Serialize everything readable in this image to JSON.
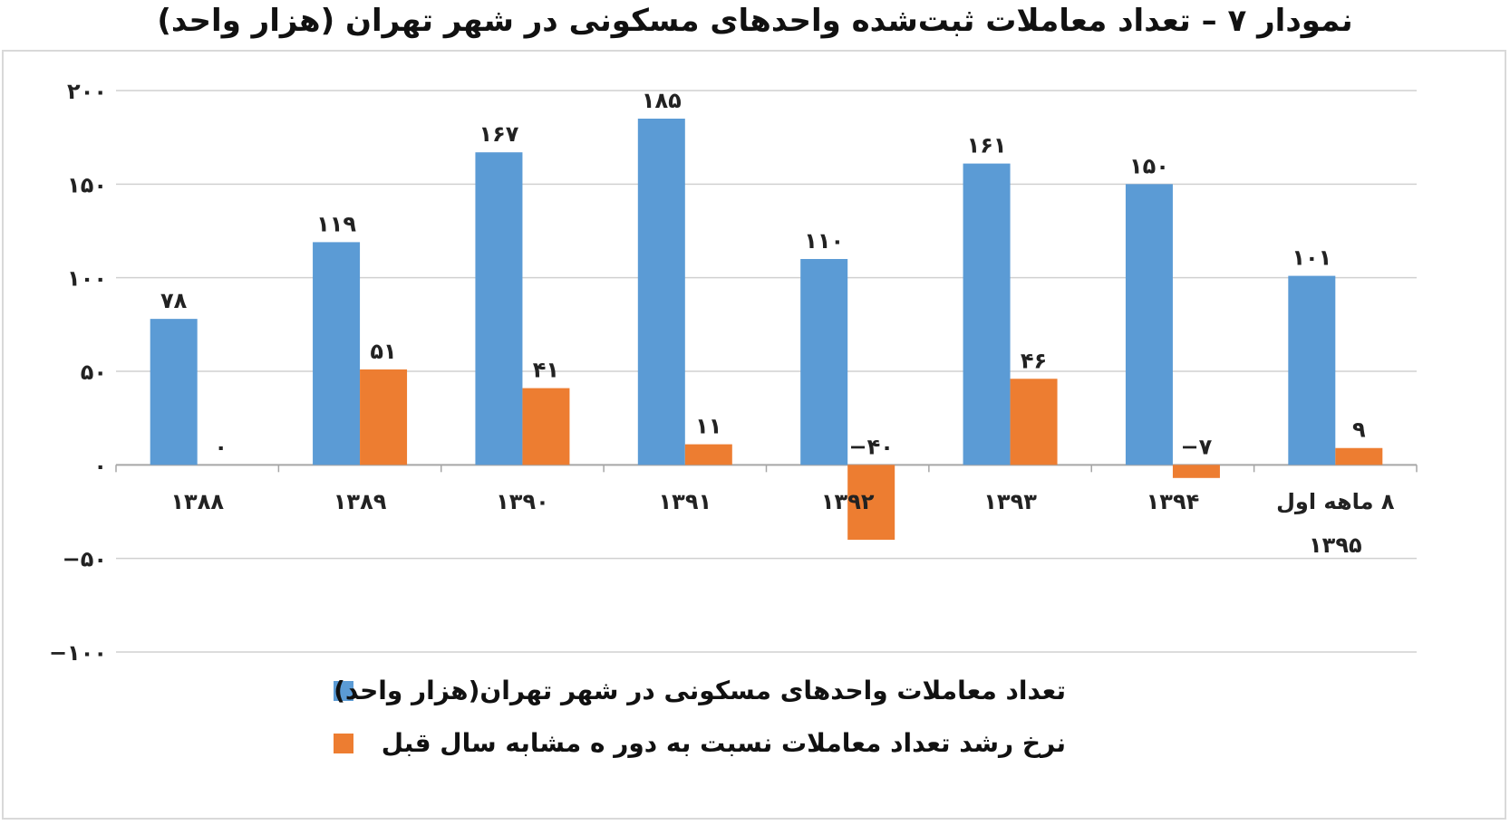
{
  "chart_data": {
    "type": "bar",
    "title": "نمودار ۷ – تعداد معاملات ثبت‌شده واحدهای مسکونی در شهر تهران (هزار واحد)",
    "categories": [
      "۱۳۸۸",
      "۱۳۸۹",
      "۱۳۹۰",
      "۱۳۹۱",
      "۱۳۹۲",
      "۱۳۹۳",
      "۱۳۹۴",
      "۸ ماهه اول ۱۳۹۵"
    ],
    "series": [
      {
        "name": "تعداد معاملات واحدهای مسکونی در شهر تهران(هزار واحد)",
        "color": "#5b9bd5",
        "values": [
          78,
          119,
          167,
          185,
          110,
          161,
          150,
          101
        ],
        "labels": [
          "۷۸",
          "۱۱۹",
          "۱۶۷",
          "۱۸۵",
          "۱۱۰",
          "۱۶۱",
          "۱۵۰",
          "۱۰۱"
        ]
      },
      {
        "name": "نرخ رشد تعداد معاملات نسبت به دور ه مشابه سال قبل",
        "color": "#ed7d31",
        "values": [
          0,
          51,
          41,
          11,
          -40,
          46,
          -7,
          9
        ],
        "labels": [
          "۰",
          "۵۱",
          "۴۱",
          "۱۱",
          "−۴۰",
          "۴۶",
          "−۷",
          "۹"
        ]
      }
    ],
    "ylim": [
      -100,
      200
    ],
    "yticks": [
      -100,
      -50,
      0,
      50,
      100,
      150,
      200
    ],
    "ytick_labels": [
      "−۱۰۰",
      "−۵۰",
      "۰",
      "۵۰",
      "۱۰۰",
      "۱۵۰",
      "۲۰۰"
    ],
    "grid": true,
    "legend_position": "bottom"
  }
}
